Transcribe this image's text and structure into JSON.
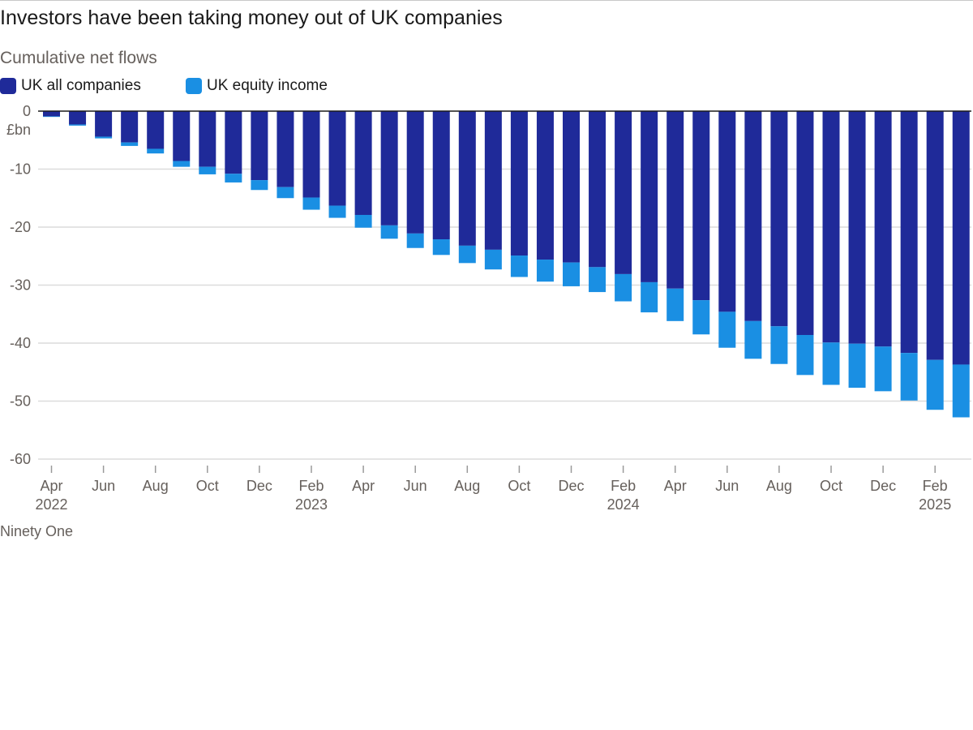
{
  "title": "Investors have been taking money out of UK companies",
  "source": "Ninety One",
  "colors": {
    "uk_all_companies": "#1f2a99",
    "uk_equity_income": "#1a8fe3",
    "gridline": "#dcdcdc",
    "zero_line": "#1a1a1a",
    "axis_text": "#66605c"
  },
  "chart_data": {
    "type": "bar",
    "stacked": true,
    "subtitle": "Cumulative net flows",
    "unit_label": "£bn",
    "ylim": [
      -60,
      0
    ],
    "yticks": [
      0,
      -10,
      -20,
      -30,
      -40,
      -50,
      -60
    ],
    "grid": true,
    "legend_position": "top-left",
    "x_tick_labels": [
      {
        "month": "Apr",
        "year": "2022",
        "index": 0
      },
      {
        "month": "Jun",
        "year": "",
        "index": 2
      },
      {
        "month": "Aug",
        "year": "",
        "index": 4
      },
      {
        "month": "Oct",
        "year": "",
        "index": 6
      },
      {
        "month": "Dec",
        "year": "",
        "index": 8
      },
      {
        "month": "Feb",
        "year": "2023",
        "index": 10
      },
      {
        "month": "Apr",
        "year": "",
        "index": 12
      },
      {
        "month": "Jun",
        "year": "",
        "index": 14
      },
      {
        "month": "Aug",
        "year": "",
        "index": 16
      },
      {
        "month": "Oct",
        "year": "",
        "index": 18
      },
      {
        "month": "Dec",
        "year": "",
        "index": 20
      },
      {
        "month": "Feb",
        "year": "2024",
        "index": 22
      },
      {
        "month": "Apr",
        "year": "",
        "index": 24
      },
      {
        "month": "Jun",
        "year": "",
        "index": 26
      },
      {
        "month": "Aug",
        "year": "",
        "index": 28
      },
      {
        "month": "Oct",
        "year": "",
        "index": 30
      },
      {
        "month": "Dec",
        "year": "",
        "index": 32
      },
      {
        "month": "Feb",
        "year": "2025",
        "index": 34
      }
    ],
    "categories": [
      "Apr 2022",
      "May 2022",
      "Jun 2022",
      "Jul 2022",
      "Aug 2022",
      "Sep 2022",
      "Oct 2022",
      "Nov 2022",
      "Dec 2022",
      "Jan 2023",
      "Feb 2023",
      "Mar 2023",
      "Apr 2023",
      "May 2023",
      "Jun 2023",
      "Jul 2023",
      "Aug 2023",
      "Sep 2023",
      "Oct 2023",
      "Nov 2023",
      "Dec 2023",
      "Jan 2024",
      "Feb 2024",
      "Mar 2024",
      "Apr 2024",
      "May 2024",
      "Jun 2024",
      "Jul 2024",
      "Aug 2024",
      "Sep 2024",
      "Oct 2024",
      "Nov 2024",
      "Dec 2024",
      "Jan 2025",
      "Feb 2025",
      "Mar 2025"
    ],
    "series": [
      {
        "name": "UK all companies",
        "values": [
          -0.9,
          -2.3,
          -4.4,
          -5.4,
          -6.5,
          -8.6,
          -9.6,
          -10.8,
          -11.9,
          -13.1,
          -14.9,
          -16.3,
          -17.9,
          -19.7,
          -21.1,
          -22.1,
          -23.2,
          -23.9,
          -24.9,
          -25.6,
          -26.1,
          -26.9,
          -28.1,
          -29.5,
          -30.6,
          -32.6,
          -34.6,
          -36.2,
          -37.1,
          -38.6,
          -39.9,
          -40.1,
          -40.6,
          -41.7,
          -42.9,
          -43.7
        ]
      },
      {
        "name": "UK equity income",
        "values": [
          -0.1,
          -0.2,
          -0.3,
          -0.6,
          -0.8,
          -1.0,
          -1.3,
          -1.5,
          -1.7,
          -1.9,
          -2.1,
          -2.1,
          -2.2,
          -2.3,
          -2.5,
          -2.7,
          -3.0,
          -3.4,
          -3.7,
          -3.8,
          -4.1,
          -4.3,
          -4.7,
          -5.2,
          -5.6,
          -5.9,
          -6.2,
          -6.5,
          -6.5,
          -6.9,
          -7.3,
          -7.6,
          -7.7,
          -8.2,
          -8.6,
          -9.1
        ]
      }
    ]
  }
}
